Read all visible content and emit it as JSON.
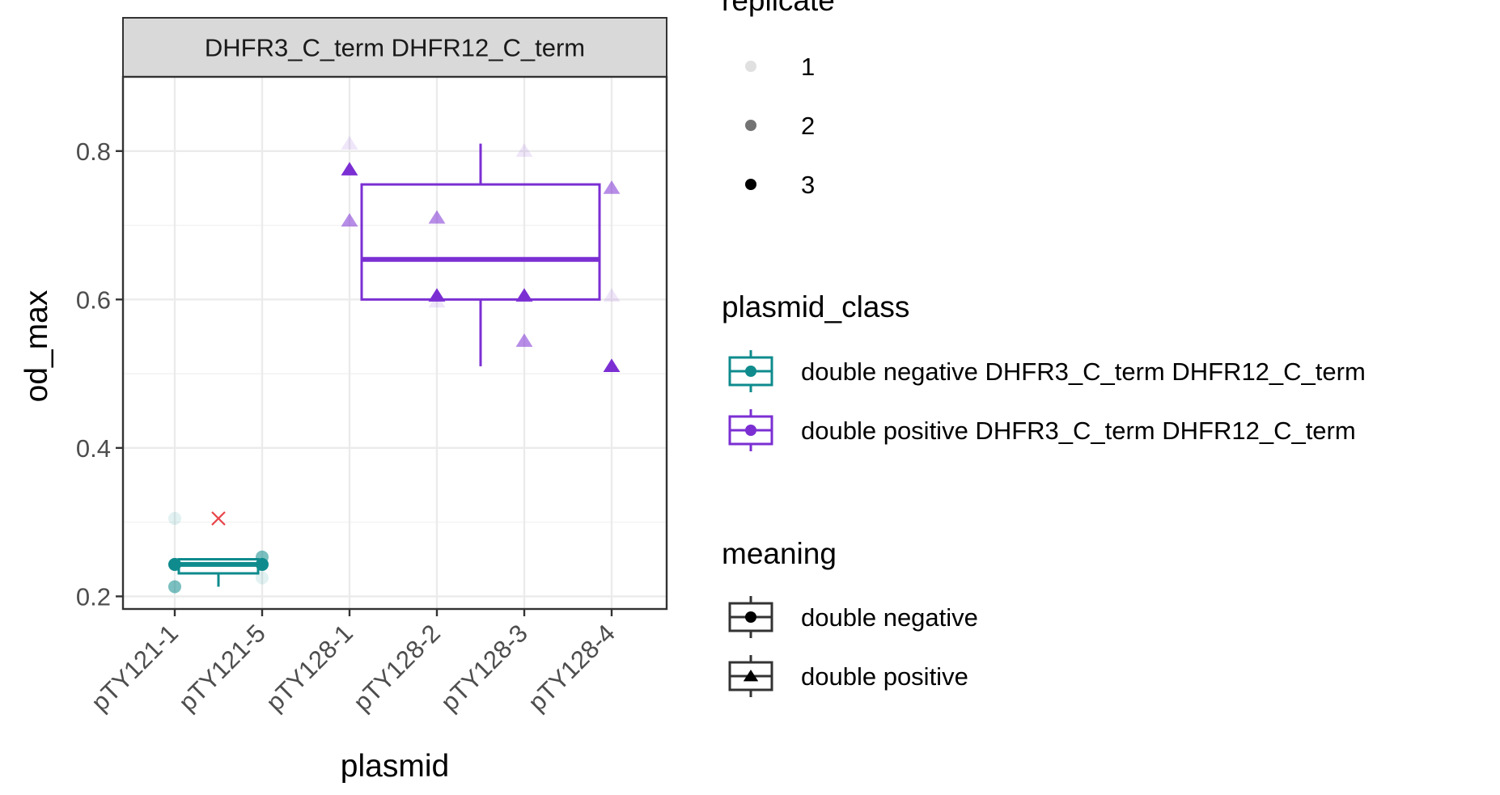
{
  "chart_data": {
    "type": "boxplot",
    "facet_label": "DHFR3_C_term DHFR12_C_term",
    "xlabel": "plasmid",
    "ylabel": "od_max",
    "categories": [
      "pTY121-1",
      "pTY121-5",
      "pTY128-1",
      "pTY128-2",
      "pTY128-3",
      "pTY128-4"
    ],
    "ylim": [
      0.183,
      0.9
    ],
    "yticks": [
      0.2,
      0.4,
      0.6,
      0.8
    ],
    "ytick_labels": [
      "0.2",
      "0.4",
      "0.6",
      "0.8"
    ],
    "grid": true,
    "colors": {
      "double_negative": "#0f8b8d",
      "double_positive": "#7b2fd3",
      "outlier": "#e8464b"
    },
    "boxes": [
      {
        "class": "double negative DHFR3_C_term DHFR12_C_term",
        "meaning": "double negative",
        "from": "pTY121-1",
        "to": "pTY121-5",
        "min": 0.213,
        "q1": 0.231,
        "median": 0.243,
        "q3": 0.25,
        "max": 0.25
      },
      {
        "class": "double positive DHFR3_C_term DHFR12_C_term",
        "meaning": "double positive",
        "from": "pTY128-1",
        "to": "pTY128-4",
        "min": 0.51,
        "q1": 0.6,
        "median": 0.654,
        "q3": 0.755,
        "max": 0.81
      }
    ],
    "outliers": [
      {
        "x": "pTY121-1",
        "y": 0.305
      }
    ],
    "points": [
      {
        "x": "pTY121-1",
        "y": 0.305,
        "replicate": 1,
        "meaning": "double negative"
      },
      {
        "x": "pTY121-1",
        "y": 0.243,
        "replicate": 3,
        "meaning": "double negative"
      },
      {
        "x": "pTY121-1",
        "y": 0.213,
        "replicate": 2,
        "meaning": "double negative"
      },
      {
        "x": "pTY121-5",
        "y": 0.253,
        "replicate": 2,
        "meaning": "double negative"
      },
      {
        "x": "pTY121-5",
        "y": 0.243,
        "replicate": 3,
        "meaning": "double negative"
      },
      {
        "x": "pTY121-5",
        "y": 0.225,
        "replicate": 1,
        "meaning": "double negative"
      },
      {
        "x": "pTY128-1",
        "y": 0.81,
        "replicate": 1,
        "meaning": "double positive"
      },
      {
        "x": "pTY128-1",
        "y": 0.775,
        "replicate": 3,
        "meaning": "double positive"
      },
      {
        "x": "pTY128-1",
        "y": 0.706,
        "replicate": 2,
        "meaning": "double positive"
      },
      {
        "x": "pTY128-2",
        "y": 0.71,
        "replicate": 2,
        "meaning": "double positive"
      },
      {
        "x": "pTY128-2",
        "y": 0.605,
        "replicate": 3,
        "meaning": "double positive"
      },
      {
        "x": "pTY128-2",
        "y": 0.597,
        "replicate": 1,
        "meaning": "double positive"
      },
      {
        "x": "pTY128-3",
        "y": 0.8,
        "replicate": 1,
        "meaning": "double positive"
      },
      {
        "x": "pTY128-3",
        "y": 0.605,
        "replicate": 3,
        "meaning": "double positive"
      },
      {
        "x": "pTY128-3",
        "y": 0.544,
        "replicate": 2,
        "meaning": "double positive"
      },
      {
        "x": "pTY128-4",
        "y": 0.75,
        "replicate": 2,
        "meaning": "double positive"
      },
      {
        "x": "pTY128-4",
        "y": 0.605,
        "replicate": 1,
        "meaning": "double positive"
      },
      {
        "x": "pTY128-4",
        "y": 0.51,
        "replicate": 3,
        "meaning": "double positive"
      }
    ],
    "legend_placement": "right",
    "legends": [
      {
        "title": "replicate",
        "keys": [
          {
            "label": "1",
            "alpha": 0.12
          },
          {
            "label": "2",
            "alpha": 0.55
          },
          {
            "label": "3",
            "alpha": 1.0
          }
        ]
      },
      {
        "title": "plasmid_class",
        "keys": [
          {
            "label": "double negative DHFR3_C_term DHFR12_C_term",
            "color": "#0f8b8d"
          },
          {
            "label": "double positive DHFR3_C_term DHFR12_C_term",
            "color": "#7b2fd3"
          }
        ]
      },
      {
        "title": "meaning",
        "keys": [
          {
            "label": "double negative",
            "shape": "circle"
          },
          {
            "label": "double positive",
            "shape": "triangle"
          }
        ]
      }
    ]
  }
}
